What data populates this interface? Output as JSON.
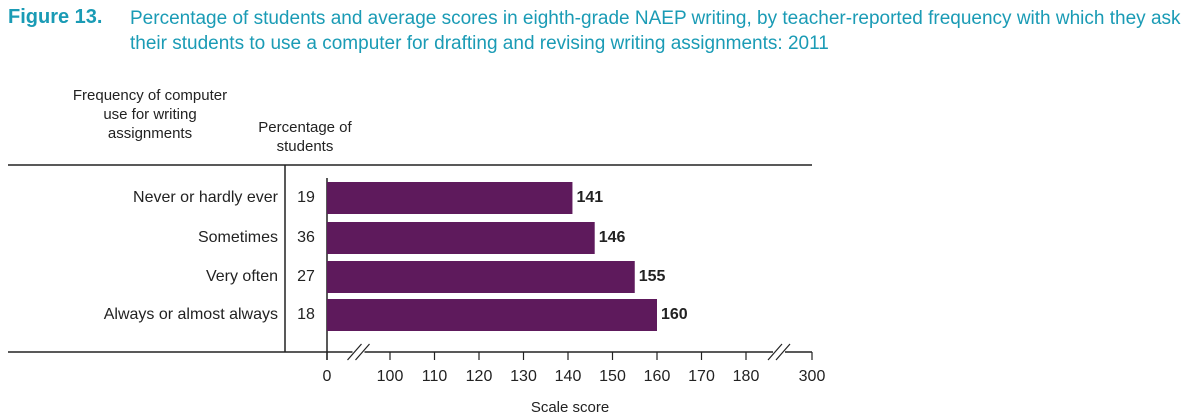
{
  "chart_data": {
    "type": "bar",
    "orientation": "horizontal",
    "figure_label": "Figure 13.",
    "title": "Percentage of students and average scores in eighth-grade NAEP writing, by teacher-reported frequency with which they ask their students to use a computer for drafting and revising writing assignments: 2011",
    "category_header": "Frequency of computer use for writing assignments",
    "percentage_header": "Percentage of students",
    "categories": [
      "Never or hardly ever",
      "Sometimes",
      "Very often",
      "Always or almost always"
    ],
    "percentages": [
      19,
      36,
      27,
      18
    ],
    "values": [
      141,
      146,
      155,
      160
    ],
    "color": "#5e1a5c",
    "xlabel": "Scale score",
    "xlim": [
      0,
      300
    ],
    "xticks": [
      0,
      100,
      110,
      120,
      130,
      140,
      150,
      160,
      170,
      180,
      300
    ],
    "axis_break": true
  }
}
